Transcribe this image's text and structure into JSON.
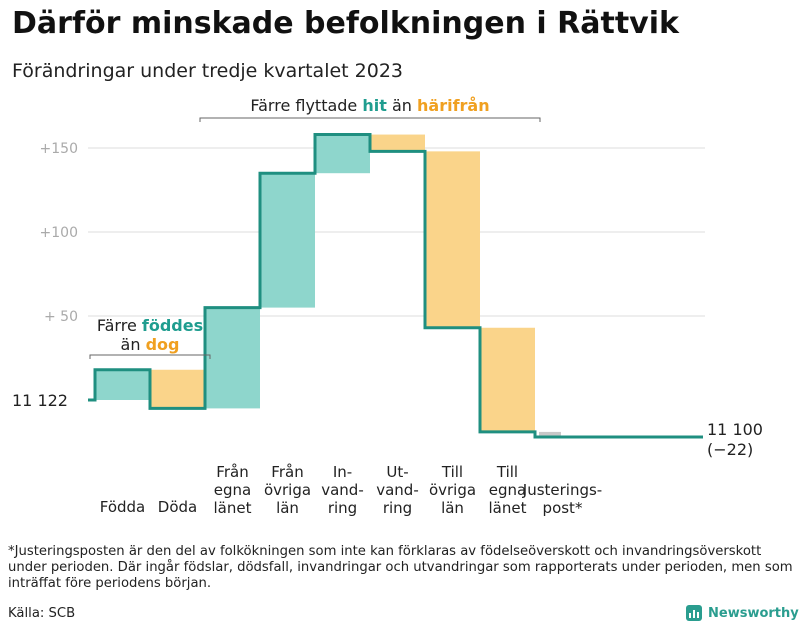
{
  "title": "Därför minskade befolkningen i Rättvik",
  "subtitle": "Förändringar under tredje kvartalet 2023",
  "footnote": "*Justeringsposten är den del av folkökningen som inte kan förklaras av födelseöverskott och invandringsöverskott under perioden. Där ingår födslar, dödsfall, invandringar och utvandringar som rapporterats under perioden, men som inträffat före periodens början.",
  "source": "Källa: SCB",
  "logo": {
    "text": "Newsworthy"
  },
  "colors": {
    "positive": "#8ed6cc",
    "negative": "#fad48a",
    "line": "#1f8f80",
    "adjustment": "#c8c8c8",
    "accent_teal": "#1f9d8f",
    "accent_orange": "#f0a020"
  },
  "chart_data": {
    "type": "waterfall",
    "start_label": "11  122",
    "end_label": "11 100",
    "end_change": "(−22)",
    "yticks": [
      {
        "value": 150,
        "label": "+150"
      },
      {
        "value": 100,
        "label": "+100"
      },
      {
        "value": 50,
        "label": "+  50"
      }
    ],
    "steps": [
      {
        "label": [
          "Födda"
        ],
        "from": 0,
        "to": 18
      },
      {
        "label": [
          "Döda"
        ],
        "from": 18,
        "to": -5
      },
      {
        "label": [
          "Från",
          "egna",
          "länet"
        ],
        "from": -5,
        "to": 55
      },
      {
        "label": [
          "Från",
          "övriga",
          "län"
        ],
        "from": 55,
        "to": 135
      },
      {
        "label": [
          "In-",
          "vand-",
          "ring"
        ],
        "from": 135,
        "to": 158
      },
      {
        "label": [
          "Ut-",
          "vand-",
          "ring"
        ],
        "from": 158,
        "to": 148
      },
      {
        "label": [
          "Till",
          "övriga",
          "län"
        ],
        "from": 148,
        "to": 43
      },
      {
        "label": [
          "Till",
          "egna",
          "länet"
        ],
        "from": 43,
        "to": -19
      },
      {
        "label": [
          "Justerings-",
          "post*"
        ],
        "from": -19,
        "to": -22
      }
    ],
    "annotations": [
      {
        "parts": [
          [
            "Färre ",
            "plain"
          ],
          [
            "föddes",
            "teal"
          ]
        ],
        "parts2": [
          [
            "än ",
            "plain"
          ],
          [
            "dog",
            "orange"
          ]
        ],
        "spans": [
          0,
          1
        ]
      },
      {
        "parts": [
          [
            "Färre flyttade ",
            "plain"
          ],
          [
            "hit",
            "teal"
          ],
          [
            " än ",
            "plain"
          ],
          [
            "härifrån",
            "orange"
          ]
        ],
        "spans": [
          2,
          7
        ]
      }
    ]
  }
}
